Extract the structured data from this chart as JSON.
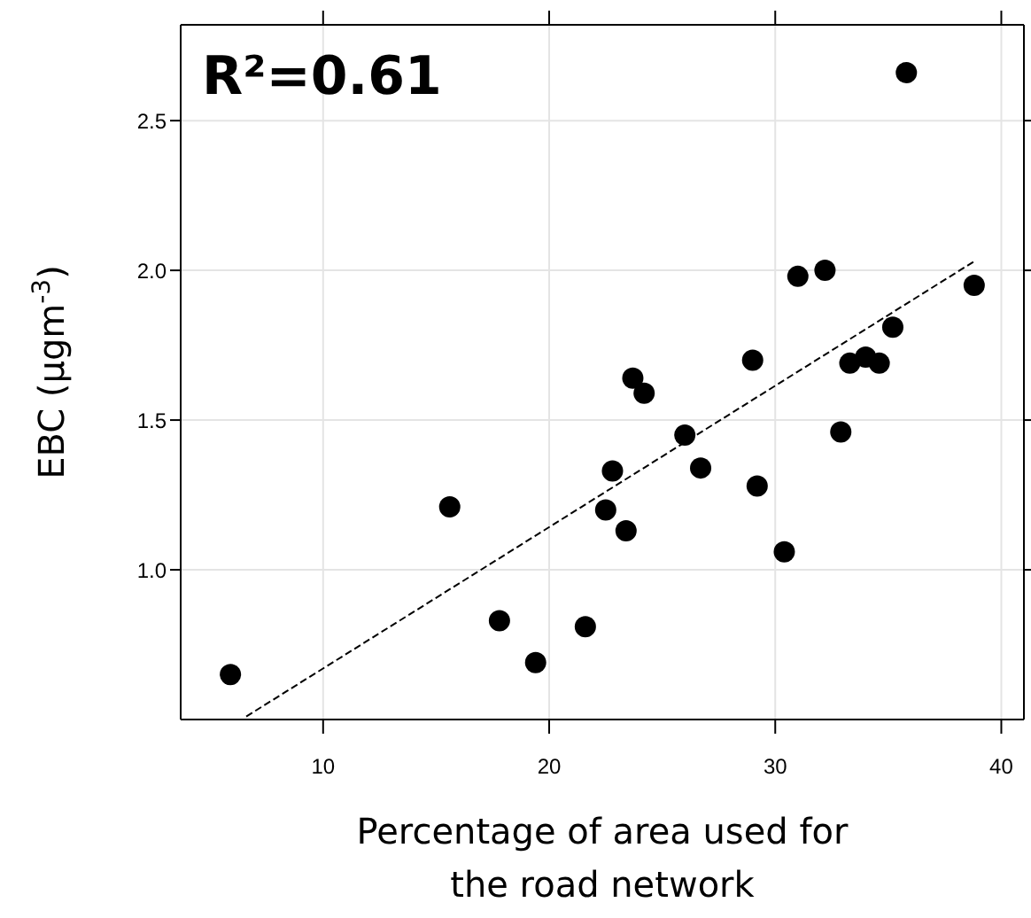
{
  "chart_data": {
    "type": "scatter",
    "xlabel": "Percentage of area used for the road network",
    "ylabel": "EBC (µgm$^{-3}$)",
    "annotations": [
      "R²=0.61"
    ],
    "xlim": [
      3.7,
      41
    ],
    "xticks": [
      10,
      20,
      30,
      40
    ],
    "ylim": [
      0.5,
      2.82
    ],
    "yticks": [
      {
        "value": 1,
        "label": "1.0"
      },
      {
        "value": 1.5,
        "label": "1.5"
      },
      {
        "value": 2,
        "label": "2.0"
      },
      {
        "value": 2.5,
        "label": "2.5"
      }
    ],
    "grid": true,
    "marker": "circle",
    "series": [
      {
        "type": "scatter",
        "color": "#000000",
        "x": [
          5.9,
          15.6,
          17.8,
          19.4,
          21.6,
          22.5,
          22.8,
          23.4,
          23.7,
          24.2,
          26.0,
          26.7,
          29.0,
          29.2,
          30.4,
          31.0,
          32.2,
          32.9,
          33.3,
          34.0,
          34.6,
          35.2,
          35.8,
          38.8
        ],
        "values": [
          0.65,
          1.21,
          0.83,
          0.69,
          0.81,
          1.2,
          1.33,
          1.13,
          1.64,
          1.59,
          1.45,
          1.34,
          1.7,
          1.28,
          1.06,
          1.98,
          2.0,
          1.46,
          1.69,
          1.71,
          1.69,
          1.81,
          2.66,
          1.95
        ]
      },
      {
        "type": "line",
        "color": "#000000",
        "line_style": "dashed",
        "marker": "none",
        "x": [
          6.6,
          38.8
        ],
        "values": [
          0.51,
          2.03
        ]
      }
    ]
  }
}
